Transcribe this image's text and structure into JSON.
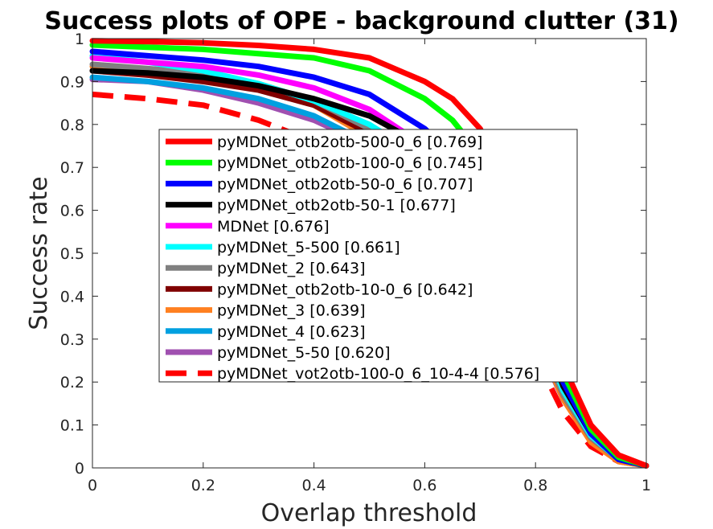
{
  "chart_data": {
    "type": "line",
    "title": "Success plots of OPE - background clutter (31)",
    "xlabel": "Overlap threshold",
    "ylabel": "Success rate",
    "xlim": [
      0,
      1
    ],
    "ylim": [
      0,
      1
    ],
    "xticks": [
      "0",
      "0.2",
      "0.4",
      "0.6",
      "0.8",
      "1"
    ],
    "yticks": [
      "0",
      "0.1",
      "0.2",
      "0.3",
      "0.4",
      "0.5",
      "0.6",
      "0.7",
      "0.8",
      "0.9",
      "1"
    ],
    "grid": false,
    "legend_position": "center",
    "x": [
      0,
      0.1,
      0.2,
      0.3,
      0.4,
      0.5,
      0.6,
      0.65,
      0.7,
      0.75,
      0.8,
      0.85,
      0.9,
      0.95,
      1.0
    ],
    "series": [
      {
        "name": "pyMDNet_otb2otb-500-0_6 [0.769]",
        "color": "#ff0000",
        "dash": false,
        "values": [
          0.995,
          0.993,
          0.99,
          0.984,
          0.975,
          0.955,
          0.9,
          0.86,
          0.79,
          0.66,
          0.46,
          0.24,
          0.1,
          0.03,
          0.005
        ]
      },
      {
        "name": "pyMDNet_otb2otb-100-0_6 [0.745]",
        "color": "#00ff00",
        "dash": false,
        "values": [
          0.985,
          0.98,
          0.975,
          0.965,
          0.955,
          0.925,
          0.86,
          0.81,
          0.73,
          0.6,
          0.42,
          0.22,
          0.09,
          0.025,
          0.005
        ]
      },
      {
        "name": "pyMDNet_otb2otb-50-0_6 [0.707]",
        "color": "#0000ff",
        "dash": false,
        "values": [
          0.97,
          0.96,
          0.95,
          0.935,
          0.91,
          0.87,
          0.79,
          0.73,
          0.65,
          0.53,
          0.38,
          0.2,
          0.08,
          0.02,
          0.005
        ]
      },
      {
        "name": "pyMDNet_otb2otb-50-1 [0.677]",
        "color": "#000000",
        "dash": false,
        "values": [
          0.925,
          0.92,
          0.91,
          0.89,
          0.86,
          0.82,
          0.75,
          0.69,
          0.61,
          0.5,
          0.36,
          0.19,
          0.08,
          0.02,
          0.005
        ]
      },
      {
        "name": "MDNet [0.676]",
        "color": "#ff00ff",
        "dash": false,
        "values": [
          0.955,
          0.945,
          0.935,
          0.915,
          0.885,
          0.835,
          0.75,
          0.69,
          0.6,
          0.49,
          0.35,
          0.19,
          0.08,
          0.02,
          0.005
        ]
      },
      {
        "name": "pyMDNet_5-500 [0.661]",
        "color": "#00ffff",
        "dash": false,
        "values": [
          0.96,
          0.945,
          0.925,
          0.895,
          0.855,
          0.8,
          0.72,
          0.66,
          0.58,
          0.47,
          0.34,
          0.18,
          0.075,
          0.02,
          0.005
        ]
      },
      {
        "name": "pyMDNet_2 [0.643]",
        "color": "#808080",
        "dash": false,
        "values": [
          0.94,
          0.93,
          0.92,
          0.895,
          0.855,
          0.79,
          0.7,
          0.64,
          0.56,
          0.45,
          0.32,
          0.17,
          0.07,
          0.02,
          0.005
        ]
      },
      {
        "name": "pyMDNet_otb2otb-10-0_6 [0.642]",
        "color": "#800000",
        "dash": false,
        "values": [
          0.925,
          0.915,
          0.9,
          0.88,
          0.845,
          0.78,
          0.69,
          0.63,
          0.55,
          0.45,
          0.32,
          0.17,
          0.07,
          0.02,
          0.005
        ]
      },
      {
        "name": "pyMDNet_3 [0.639]",
        "color": "#ff8020",
        "dash": false,
        "values": [
          0.935,
          0.925,
          0.915,
          0.89,
          0.845,
          0.77,
          0.68,
          0.62,
          0.54,
          0.44,
          0.31,
          0.16,
          0.06,
          0.015,
          0.005
        ]
      },
      {
        "name": "pyMDNet_4 [0.623]",
        "color": "#00a0e0",
        "dash": false,
        "values": [
          0.91,
          0.9,
          0.885,
          0.86,
          0.82,
          0.755,
          0.67,
          0.61,
          0.53,
          0.43,
          0.31,
          0.16,
          0.065,
          0.02,
          0.005
        ]
      },
      {
        "name": "pyMDNet_5-50 [0.620]",
        "color": "#a050b0",
        "dash": false,
        "values": [
          0.905,
          0.9,
          0.88,
          0.85,
          0.81,
          0.75,
          0.66,
          0.61,
          0.53,
          0.43,
          0.3,
          0.16,
          0.065,
          0.02,
          0.005
        ]
      },
      {
        "name": "pyMDNet_vot2otb-100-0_6_10-4-4 [0.576]",
        "color": "#ff0000",
        "dash": true,
        "values": [
          0.87,
          0.86,
          0.845,
          0.81,
          0.76,
          0.69,
          0.6,
          0.54,
          0.46,
          0.37,
          0.26,
          0.13,
          0.05,
          0.015,
          0.005
        ]
      }
    ]
  }
}
